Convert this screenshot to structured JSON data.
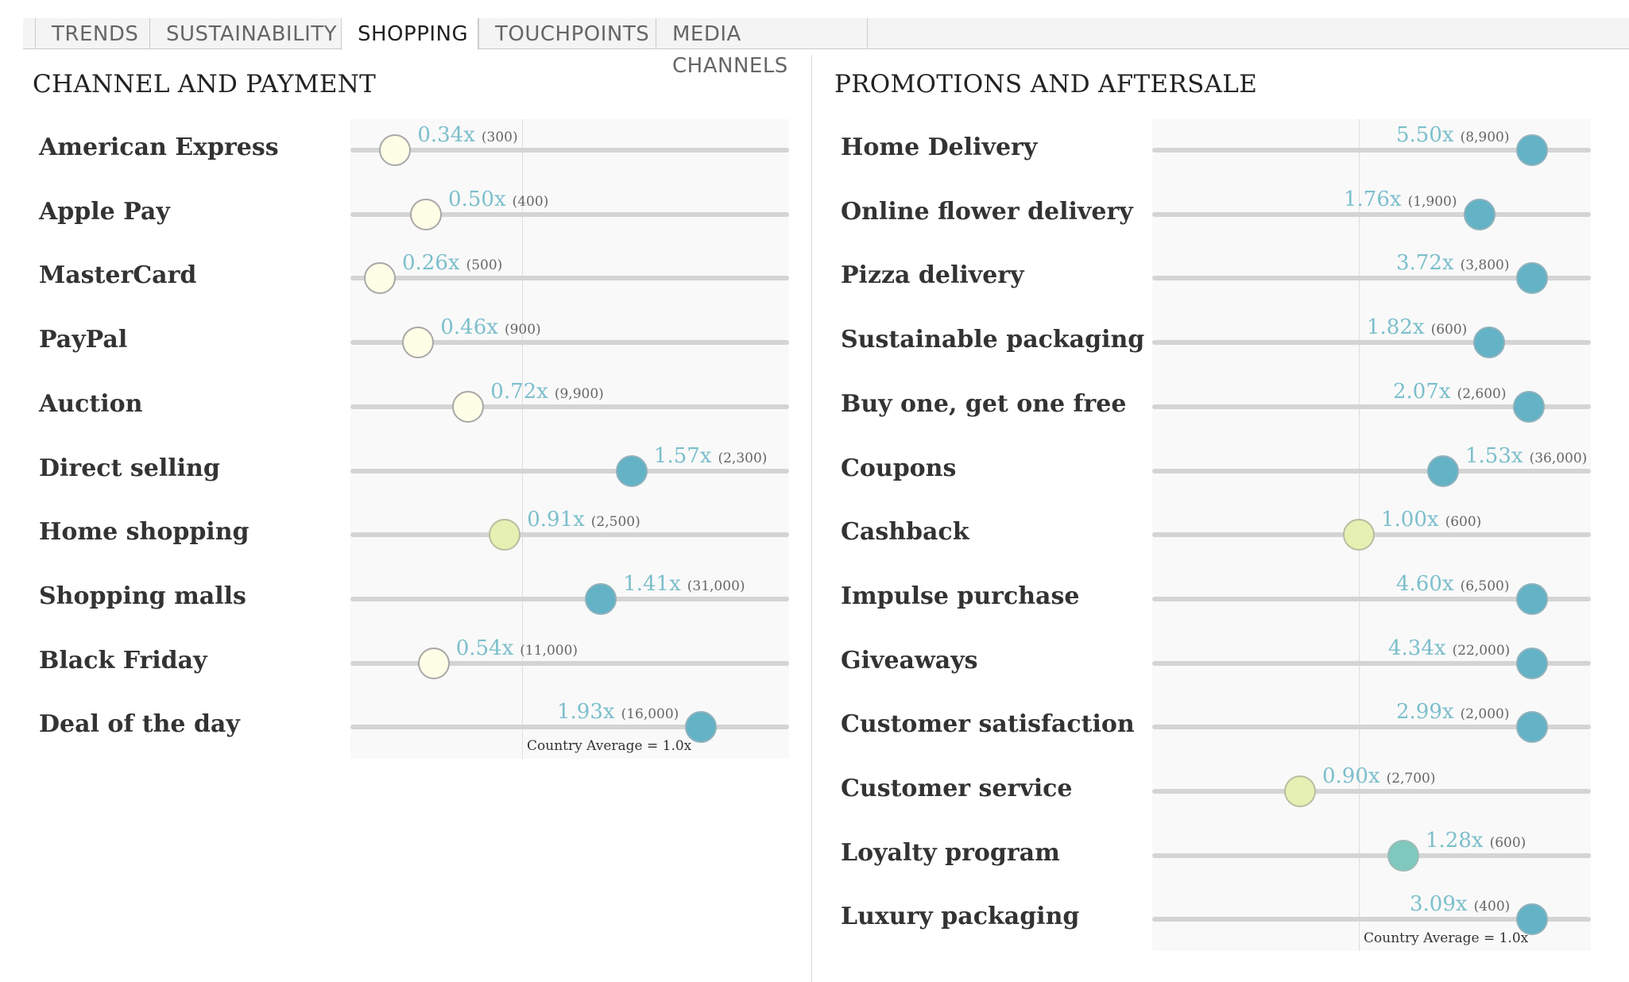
{
  "tabs": [
    {
      "label": "TRENDS",
      "active": false
    },
    {
      "label": "SUSTAINABILITY",
      "active": false
    },
    {
      "label": "SHOPPING",
      "active": true
    },
    {
      "label": "TOUCHPOINTS",
      "active": false
    },
    {
      "label": "MEDIA CHANNELS",
      "active": false
    }
  ],
  "colors": {
    "low": "#fefee6",
    "mid": "#e5f0b2",
    "midhigh": "#7fc8bd",
    "high": "#63b2c5",
    "value_text": "#7cbfcc",
    "track": "#d4d4d4"
  },
  "left_panel": {
    "title": "CHANNEL AND PAYMENT",
    "avg_note": "Country Average = 1.0x",
    "rows": [
      {
        "label": "American Express",
        "value": 0.34,
        "ratio": "0.34x",
        "count": "(300)"
      },
      {
        "label": "Apple Pay",
        "value": 0.5,
        "ratio": "0.50x",
        "count": "(400)"
      },
      {
        "label": "MasterCard",
        "value": 0.26,
        "ratio": "0.26x",
        "count": "(500)"
      },
      {
        "label": "PayPal",
        "value": 0.46,
        "ratio": "0.46x",
        "count": "(900)"
      },
      {
        "label": "Auction",
        "value": 0.72,
        "ratio": "0.72x",
        "count": "(9,900)"
      },
      {
        "label": "Direct selling",
        "value": 1.57,
        "ratio": "1.57x",
        "count": "(2,300)"
      },
      {
        "label": "Home shopping",
        "value": 0.91,
        "ratio": "0.91x",
        "count": "(2,500)"
      },
      {
        "label": "Shopping malls",
        "value": 1.41,
        "ratio": "1.41x",
        "count": "(31,000)"
      },
      {
        "label": "Black Friday",
        "value": 0.54,
        "ratio": "0.54x",
        "count": "(11,000)"
      },
      {
        "label": "Deal of the day",
        "value": 1.93,
        "ratio": "1.93x",
        "count": "(16,000)"
      }
    ]
  },
  "right_panel": {
    "title": "PROMOTIONS AND AFTERSALE",
    "avg_note": "Country Average = 1.0x",
    "rows": [
      {
        "label": "Home Delivery",
        "value": 5.5,
        "ratio": "5.50x",
        "count": "(8,900)"
      },
      {
        "label": "Online flower delivery",
        "value": 1.76,
        "ratio": "1.76x",
        "count": "(1,900)"
      },
      {
        "label": "Pizza delivery",
        "value": 3.72,
        "ratio": "3.72x",
        "count": "(3,800)"
      },
      {
        "label": "Sustainable packaging",
        "value": 1.82,
        "ratio": "1.82x",
        "count": "(600)"
      },
      {
        "label": "Buy one, get one free",
        "value": 2.07,
        "ratio": "2.07x",
        "count": "(2,600)"
      },
      {
        "label": "Coupons",
        "value": 1.53,
        "ratio": "1.53x",
        "count": "(36,000)"
      },
      {
        "label": "Cashback",
        "value": 1.0,
        "ratio": "1.00x",
        "count": "(600)"
      },
      {
        "label": "Impulse purchase",
        "value": 4.6,
        "ratio": "4.60x",
        "count": "(6,500)"
      },
      {
        "label": "Giveaways",
        "value": 4.34,
        "ratio": "4.34x",
        "count": "(22,000)"
      },
      {
        "label": "Customer satisfaction",
        "value": 2.99,
        "ratio": "2.99x",
        "count": "(2,000)"
      },
      {
        "label": "Customer service",
        "value": 0.9,
        "ratio": "0.90x",
        "count": "(2,700)"
      },
      {
        "label": "Loyalty program",
        "value": 1.28,
        "ratio": "1.28x",
        "count": "(600)"
      },
      {
        "label": "Luxury packaging",
        "value": 3.09,
        "ratio": "3.09x",
        "count": "(400)"
      }
    ]
  }
}
